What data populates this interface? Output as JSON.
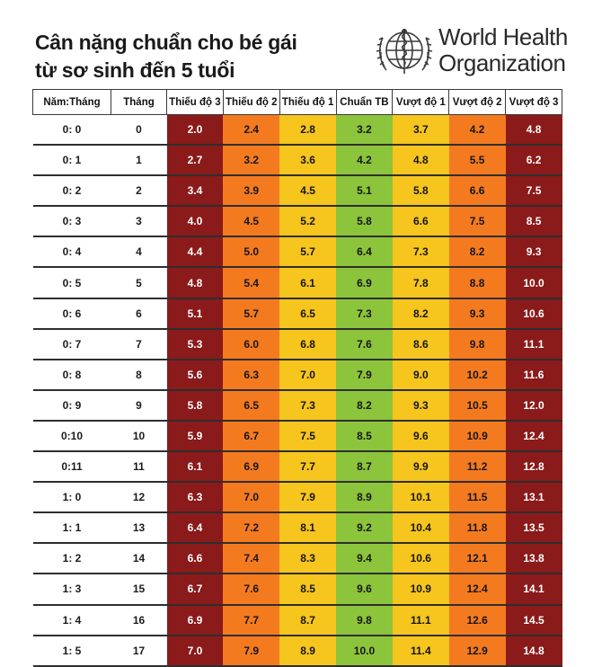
{
  "title": {
    "line1": "Cân nặng chuẩn cho bé gái",
    "line2": "từ sơ sinh đến 5 tuổi"
  },
  "logo": {
    "icon": "who-emblem-icon",
    "line1": "World Health",
    "line2": "Organization"
  },
  "table": {
    "headers": [
      "Năm:Tháng",
      "Tháng",
      "Thiếu độ 3",
      "Thiếu độ 2",
      "Thiếu độ 1",
      "Chuẩn TB",
      "Vượt độ 1",
      "Vượt độ 2",
      "Vượt độ 3"
    ],
    "zone_colors": [
      "#8b1a1a",
      "#f47a20",
      "#f6c51e",
      "#8cc43c",
      "#f6c51e",
      "#f47a20",
      "#8b1a1a"
    ],
    "rows": [
      [
        "0: 0",
        "0",
        "2.0",
        "2.4",
        "2.8",
        "3.2",
        "3.7",
        "4.2",
        "4.8"
      ],
      [
        "0: 1",
        "1",
        "2.7",
        "3.2",
        "3.6",
        "4.2",
        "4.8",
        "5.5",
        "6.2"
      ],
      [
        "0: 2",
        "2",
        "3.4",
        "3.9",
        "4.5",
        "5.1",
        "5.8",
        "6.6",
        "7.5"
      ],
      [
        "0: 3",
        "3",
        "4.0",
        "4.5",
        "5.2",
        "5.8",
        "6.6",
        "7.5",
        "8.5"
      ],
      [
        "0: 4",
        "4",
        "4.4",
        "5.0",
        "5.7",
        "6.4",
        "7.3",
        "8.2",
        "9.3"
      ],
      [
        "0: 5",
        "5",
        "4.8",
        "5.4",
        "6.1",
        "6.9",
        "7.8",
        "8.8",
        "10.0"
      ],
      [
        "0: 6",
        "6",
        "5.1",
        "5.7",
        "6.5",
        "7.3",
        "8.2",
        "9.3",
        "10.6"
      ],
      [
        "0: 7",
        "7",
        "5.3",
        "6.0",
        "6.8",
        "7.6",
        "8.6",
        "9.8",
        "11.1"
      ],
      [
        "0: 8",
        "8",
        "5.6",
        "6.3",
        "7.0",
        "7.9",
        "9.0",
        "10.2",
        "11.6"
      ],
      [
        "0: 9",
        "9",
        "5.8",
        "6.5",
        "7.3",
        "8.2",
        "9.3",
        "10.5",
        "12.0"
      ],
      [
        "0:10",
        "10",
        "5.9",
        "6.7",
        "7.5",
        "8.5",
        "9.6",
        "10.9",
        "12.4"
      ],
      [
        "0:11",
        "11",
        "6.1",
        "6.9",
        "7.7",
        "8.7",
        "9.9",
        "11.2",
        "12.8"
      ],
      [
        "1: 0",
        "12",
        "6.3",
        "7.0",
        "7.9",
        "8.9",
        "10.1",
        "11.5",
        "13.1"
      ],
      [
        "1: 1",
        "13",
        "6.4",
        "7.2",
        "8.1",
        "9.2",
        "10.4",
        "11.8",
        "13.5"
      ],
      [
        "1: 2",
        "14",
        "6.6",
        "7.4",
        "8.3",
        "9.4",
        "10.6",
        "12.1",
        "13.8"
      ],
      [
        "1: 3",
        "15",
        "6.7",
        "7.6",
        "8.5",
        "9.6",
        "10.9",
        "12.4",
        "14.1"
      ],
      [
        "1: 4",
        "16",
        "6.9",
        "7.7",
        "8.7",
        "9.8",
        "11.1",
        "12.6",
        "14.5"
      ],
      [
        "1: 5",
        "17",
        "7.0",
        "7.9",
        "8.9",
        "10.0",
        "11.4",
        "12.9",
        "14.8"
      ]
    ]
  }
}
